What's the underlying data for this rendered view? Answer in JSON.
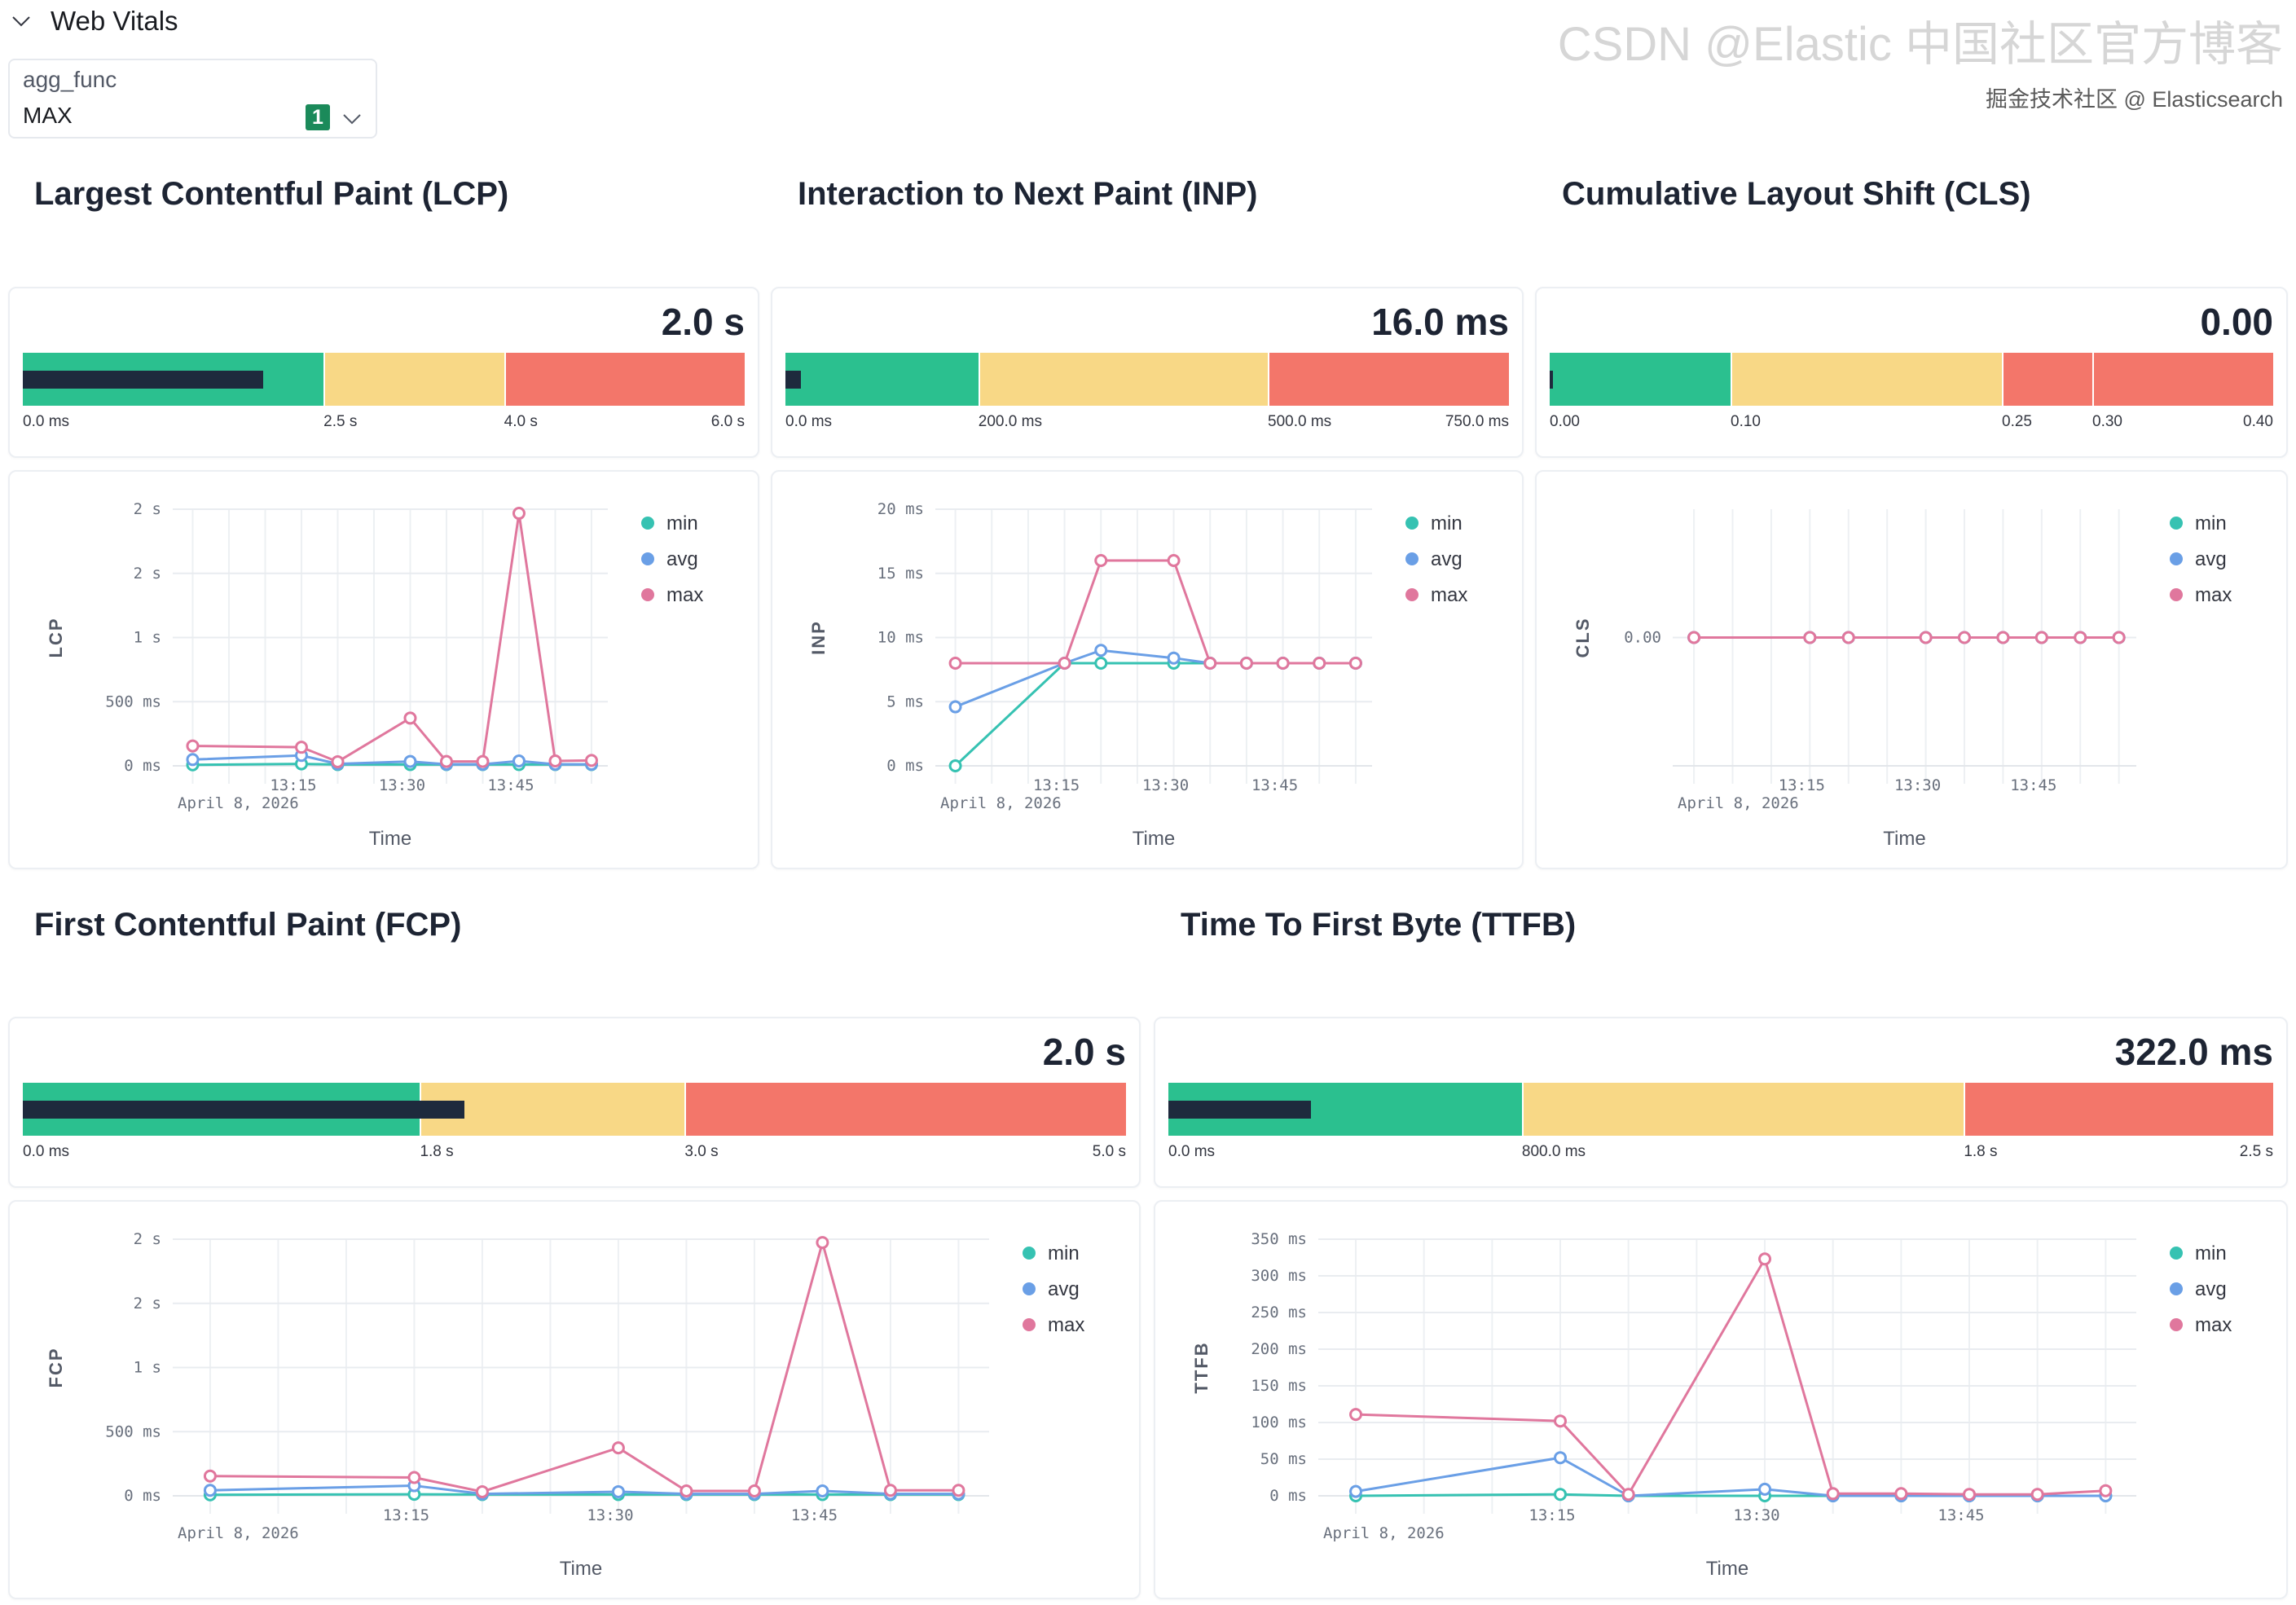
{
  "section": {
    "title": "Web Vitals"
  },
  "filter": {
    "label": "agg_func",
    "value": "MAX",
    "badge": "1"
  },
  "colors": {
    "good": "#2bc08f",
    "needs_improvement": "#f8d886",
    "poor": "#f3766a",
    "value_bar": "#1e2a3d",
    "min": "#36c2b2",
    "avg": "#6a9fe6",
    "max": "#e0779d",
    "badge": "#1b8a5a"
  },
  "metrics": [
    {
      "title": "Largest Contentful Paint (LCP)",
      "gauge": {
        "value_label": "2.0 s",
        "value": 2.0,
        "min": 0,
        "max": 6.0,
        "bands": [
          {
            "to": 2.5,
            "status": "good"
          },
          {
            "to": 4.0,
            "status": "needs_improvement"
          },
          {
            "to": 6.0,
            "status": "poor"
          }
        ],
        "ticks": [
          {
            "value": 0,
            "label": "0.0 ms"
          },
          {
            "value": 2.5,
            "label": "2.5 s"
          },
          {
            "value": 4.0,
            "label": "4.0 s"
          },
          {
            "value": 6.0,
            "label": "6.0 s"
          }
        ]
      }
    },
    {
      "title": "Interaction to Next Paint (INP)",
      "gauge": {
        "value_label": "16.0 ms",
        "value": 16,
        "min": 0,
        "max": 750,
        "bands": [
          {
            "to": 200,
            "status": "good"
          },
          {
            "to": 500,
            "status": "needs_improvement"
          },
          {
            "to": 750,
            "status": "poor"
          }
        ],
        "ticks": [
          {
            "value": 0,
            "label": "0.0 ms"
          },
          {
            "value": 200,
            "label": "200.0 ms"
          },
          {
            "value": 500,
            "label": "500.0 ms"
          },
          {
            "value": 750,
            "label": "750.0 ms"
          }
        ]
      }
    },
    {
      "title": "Cumulative Layout Shift (CLS)",
      "gauge": {
        "value_label": "0.00",
        "value": 0,
        "min": 0,
        "max": 0.4,
        "bands": [
          {
            "to": 0.1,
            "status": "good"
          },
          {
            "to": 0.25,
            "status": "needs_improvement"
          },
          {
            "to": 0.3,
            "status": "poor"
          },
          {
            "to": 0.4,
            "status": "poor"
          }
        ],
        "ticks": [
          {
            "value": 0,
            "label": "0.00"
          },
          {
            "value": 0.1,
            "label": "0.10"
          },
          {
            "value": 0.25,
            "label": "0.25"
          },
          {
            "value": 0.3,
            "label": "0.30"
          },
          {
            "value": 0.4,
            "label": "0.40"
          }
        ]
      }
    },
    {
      "title": "First Contentful Paint (FCP)",
      "gauge": {
        "value_label": "2.0 s",
        "value": 2.0,
        "min": 0,
        "max": 5.0,
        "bands": [
          {
            "to": 1.8,
            "status": "good"
          },
          {
            "to": 3.0,
            "status": "needs_improvement"
          },
          {
            "to": 5.0,
            "status": "poor"
          }
        ],
        "ticks": [
          {
            "value": 0,
            "label": "0.0 ms"
          },
          {
            "value": 1.8,
            "label": "1.8 s"
          },
          {
            "value": 3.0,
            "label": "3.0 s"
          },
          {
            "value": 5.0,
            "label": "5.0 s"
          }
        ]
      }
    },
    {
      "title": "Time To First Byte (TTFB)",
      "gauge": {
        "value_label": "322.0 ms",
        "value": 322,
        "min": 0,
        "max": 2500,
        "bands": [
          {
            "to": 800,
            "status": "good"
          },
          {
            "to": 1800,
            "status": "needs_improvement"
          },
          {
            "to": 2500,
            "status": "poor"
          }
        ],
        "ticks": [
          {
            "value": 0,
            "label": "0.0 ms"
          },
          {
            "value": 800,
            "label": "800.0 ms"
          },
          {
            "value": 1800,
            "label": "1.8 s"
          },
          {
            "value": 2500,
            "label": "2.5 s"
          }
        ]
      }
    }
  ],
  "chart_data": [
    {
      "type": "line",
      "ylabel": "LCP",
      "xlabel": "Time",
      "date_label": "April 8, 2026",
      "x": [
        "13:00",
        "13:15",
        "13:20",
        "13:30",
        "13:35",
        "13:40",
        "13:45",
        "13:50",
        "13:55"
      ],
      "xticks": [
        "13:15",
        "13:30",
        "13:45"
      ],
      "ylim": [
        0,
        2000
      ],
      "yticks": [
        {
          "value": 0,
          "label": "0 ms"
        },
        {
          "value": 500,
          "label": "500 ms"
        },
        {
          "value": 1000,
          "label": "1 s"
        },
        {
          "value": 1500,
          "label": "2 s"
        },
        {
          "value": 2000,
          "label": "2 s"
        }
      ],
      "grid": true,
      "legend": "top-right",
      "series": [
        {
          "name": "min",
          "values": [
            8,
            15,
            10,
            10,
            10,
            10,
            10,
            10,
            10
          ]
        },
        {
          "name": "avg",
          "values": [
            49,
            81,
            15,
            34,
            12,
            12,
            38,
            12,
            12
          ]
        },
        {
          "name": "max",
          "values": [
            155,
            145,
            32,
            372,
            34,
            34,
            1968,
            38,
            42
          ]
        }
      ]
    },
    {
      "type": "line",
      "ylabel": "INP",
      "xlabel": "Time",
      "date_label": "April 8, 2026",
      "x": [
        "13:00",
        "13:15",
        "13:20",
        "13:30",
        "13:35",
        "13:40",
        "13:45",
        "13:50",
        "13:55"
      ],
      "xticks": [
        "13:15",
        "13:30",
        "13:45"
      ],
      "ylim": [
        0,
        20
      ],
      "yticks": [
        {
          "value": 0,
          "label": "0 ms"
        },
        {
          "value": 5,
          "label": "5 ms"
        },
        {
          "value": 10,
          "label": "10 ms"
        },
        {
          "value": 15,
          "label": "15 ms"
        },
        {
          "value": 20,
          "label": "20 ms"
        }
      ],
      "grid": true,
      "legend": "top-right",
      "series": [
        {
          "name": "min",
          "values": [
            0,
            8,
            8,
            8,
            8,
            8,
            8,
            8,
            8
          ]
        },
        {
          "name": "avg",
          "values": [
            4.6,
            8,
            9,
            8.4,
            8,
            8,
            8,
            8,
            8
          ]
        },
        {
          "name": "max",
          "values": [
            8,
            8,
            16,
            16,
            8,
            8,
            8,
            8,
            8
          ]
        }
      ]
    },
    {
      "type": "line",
      "ylabel": "CLS",
      "xlabel": "Time",
      "date_label": "April 8, 2026",
      "x": [
        "13:00",
        "13:15",
        "13:20",
        "13:30",
        "13:35",
        "13:40",
        "13:45",
        "13:50",
        "13:55"
      ],
      "xticks": [
        "13:15",
        "13:30",
        "13:45"
      ],
      "ylim": null,
      "yticks": [
        {
          "value": 0,
          "label": "0.00"
        }
      ],
      "grid": true,
      "legend": "top-right",
      "series": [
        {
          "name": "min",
          "values": [
            0,
            0,
            0,
            0,
            0,
            0,
            0,
            0,
            0
          ]
        },
        {
          "name": "avg",
          "values": [
            0,
            0,
            0,
            0,
            0,
            0,
            0,
            0,
            0
          ]
        },
        {
          "name": "max",
          "values": [
            0,
            0,
            0,
            0,
            0,
            0,
            0,
            0,
            0
          ]
        }
      ]
    },
    {
      "type": "line",
      "ylabel": "FCP",
      "xlabel": "Time",
      "date_label": "April 8, 2026",
      "x": [
        "13:00",
        "13:15",
        "13:20",
        "13:30",
        "13:35",
        "13:40",
        "13:45",
        "13:50",
        "13:55"
      ],
      "xticks": [
        "13:15",
        "13:30",
        "13:45"
      ],
      "ylim": [
        0,
        2000
      ],
      "yticks": [
        {
          "value": 0,
          "label": "0 ms"
        },
        {
          "value": 500,
          "label": "500 ms"
        },
        {
          "value": 1000,
          "label": "1 s"
        },
        {
          "value": 1500,
          "label": "2 s"
        },
        {
          "value": 2000,
          "label": "2 s"
        }
      ],
      "grid": true,
      "legend": "top-right",
      "series": [
        {
          "name": "min",
          "values": [
            8,
            12,
            10,
            10,
            10,
            10,
            10,
            10,
            10
          ]
        },
        {
          "name": "avg",
          "values": [
            43,
            79,
            15,
            32,
            15,
            15,
            38,
            15,
            15
          ]
        },
        {
          "name": "max",
          "values": [
            154,
            143,
            32,
            374,
            38,
            38,
            1974,
            43,
            43
          ]
        }
      ]
    },
    {
      "type": "line",
      "ylabel": "TTFB",
      "xlabel": "Time",
      "date_label": "April 8, 2026",
      "x": [
        "13:00",
        "13:15",
        "13:20",
        "13:30",
        "13:35",
        "13:40",
        "13:45",
        "13:50",
        "13:55"
      ],
      "xticks": [
        "13:15",
        "13:30",
        "13:45"
      ],
      "ylim": [
        0,
        350
      ],
      "yticks": [
        {
          "value": 0,
          "label": "0 ms"
        },
        {
          "value": 50,
          "label": "50 ms"
        },
        {
          "value": 100,
          "label": "100 ms"
        },
        {
          "value": 150,
          "label": "150 ms"
        },
        {
          "value": 200,
          "label": "200 ms"
        },
        {
          "value": 250,
          "label": "250 ms"
        },
        {
          "value": 300,
          "label": "300 ms"
        },
        {
          "value": 350,
          "label": "350 ms"
        }
      ],
      "grid": true,
      "legend": "top-right",
      "series": [
        {
          "name": "min",
          "values": [
            0,
            2,
            0,
            0,
            0,
            0,
            0,
            0,
            0
          ]
        },
        {
          "name": "avg",
          "values": [
            6,
            52,
            0,
            9,
            0,
            0,
            0,
            0,
            0
          ]
        },
        {
          "name": "max",
          "values": [
            111,
            102,
            2,
            323,
            3,
            3,
            2,
            2,
            7
          ]
        }
      ]
    }
  ],
  "watermark": {
    "primary": "CSDN @Elastic 中国社区官方博客",
    "secondary": "掘金技术社区 @ Elasticsearch"
  }
}
